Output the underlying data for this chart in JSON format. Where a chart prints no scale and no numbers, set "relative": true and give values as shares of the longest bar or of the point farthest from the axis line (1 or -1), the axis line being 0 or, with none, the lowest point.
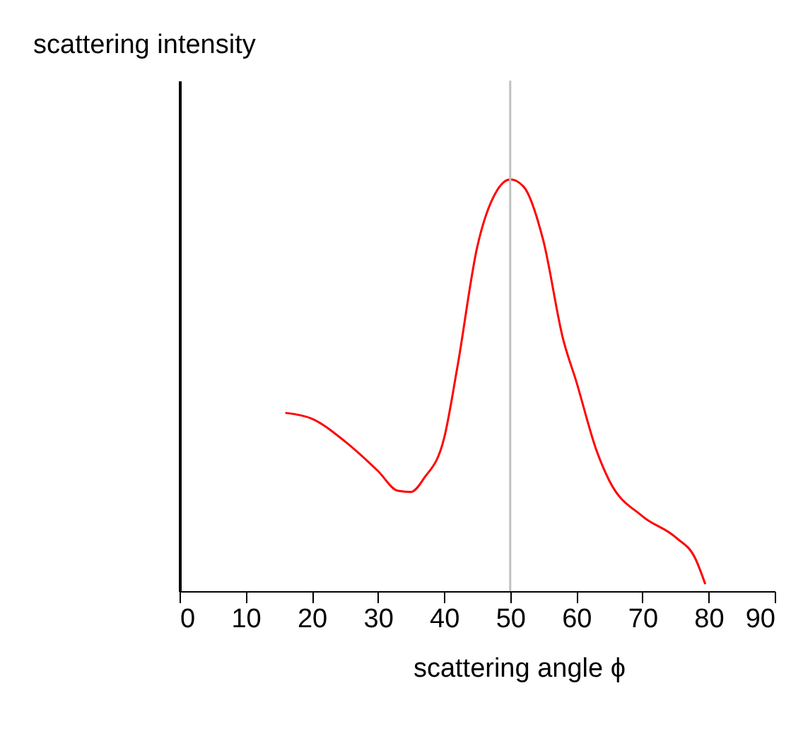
{
  "chart_data": {
    "type": "line",
    "relative": true,
    "xlabel": "scattering angle ϕ",
    "ylabel": "scattering intensity",
    "xlim": [
      0,
      90
    ],
    "xticks": [
      0,
      10,
      20,
      30,
      40,
      50,
      60,
      70,
      80,
      90
    ],
    "grid": false,
    "marker": "none",
    "line_style": "solid",
    "ref_lines": [
      {
        "axis": "x",
        "value": 50,
        "color": "#c0c0c0"
      }
    ],
    "series": [
      {
        "color": "#ff0000",
        "x": [
          16,
          20,
          25,
          30,
          33,
          35,
          37,
          40,
          42,
          45,
          48,
          50,
          52,
          55,
          58,
          60,
          63,
          65,
          70,
          75,
          78,
          79.5
        ],
        "values": [
          0.433,
          0.419,
          0.364,
          0.292,
          0.244,
          0.241,
          0.275,
          0.371,
          0.543,
          0.835,
          0.973,
          1,
          0.983,
          0.852,
          0.612,
          0.509,
          0.344,
          0.268,
          0.182,
          0.131,
          0.079,
          0.017
        ]
      }
    ]
  }
}
